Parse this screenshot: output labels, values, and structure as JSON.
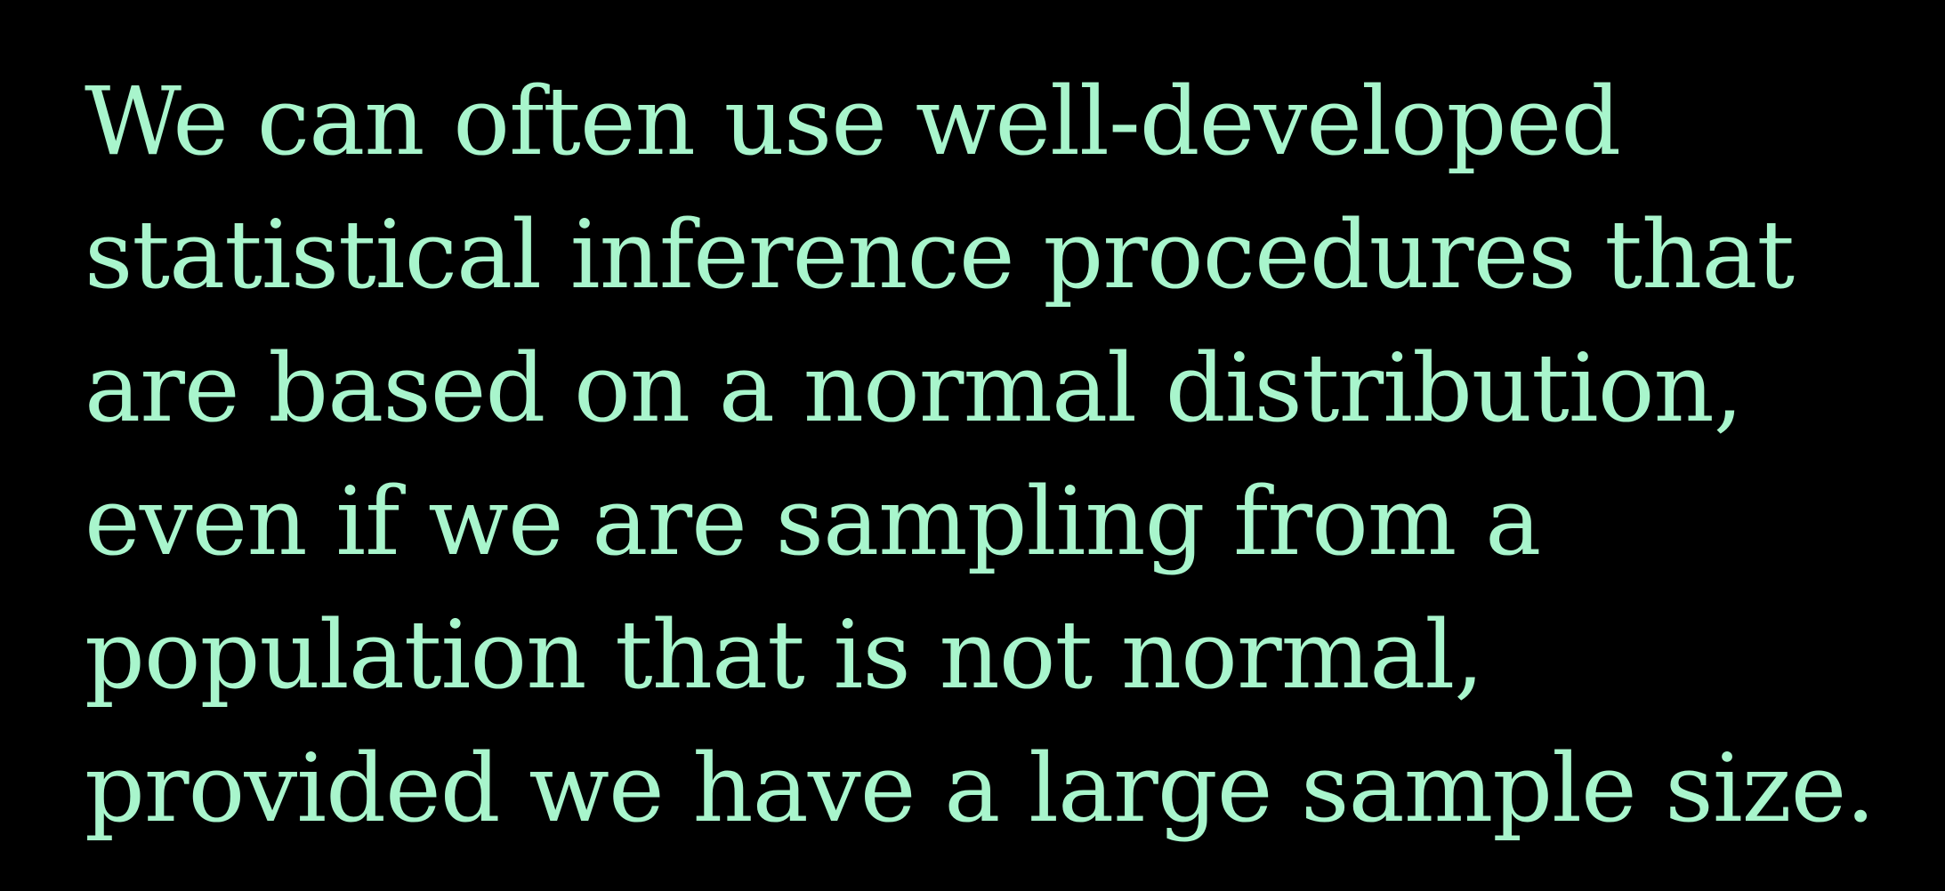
{
  "slide": {
    "text_color": "#a8f5cc",
    "background_color": "#000000",
    "lines": [
      "We can often use well-developed",
      "statistical inference procedures that",
      "are based on a normal distribution,",
      "even if we are sampling from a",
      "population that is not normal,",
      "provided we have a large sample size."
    ]
  }
}
